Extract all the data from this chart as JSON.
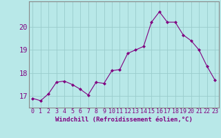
{
  "x": [
    0,
    1,
    2,
    3,
    4,
    5,
    6,
    7,
    8,
    9,
    10,
    11,
    12,
    13,
    14,
    15,
    16,
    17,
    18,
    19,
    20,
    21,
    22,
    23
  ],
  "y": [
    16.9,
    16.8,
    17.1,
    17.6,
    17.65,
    17.5,
    17.3,
    17.05,
    17.6,
    17.55,
    18.1,
    18.15,
    18.85,
    19.0,
    19.15,
    20.2,
    20.65,
    20.2,
    20.2,
    19.65,
    19.4,
    19.0,
    18.3,
    17.7
  ],
  "line_color": "#800080",
  "marker": "D",
  "marker_size": 2.0,
  "bg_color": "#b8e8e8",
  "grid_color": "#99cccc",
  "xlabel": "Windchill (Refroidissement éolien,°C)",
  "xlim": [
    -0.5,
    23.5
  ],
  "ylim": [
    16.5,
    21.1
  ],
  "yticks": [
    17,
    18,
    19,
    20
  ],
  "xticks": [
    0,
    1,
    2,
    3,
    4,
    5,
    6,
    7,
    8,
    9,
    10,
    11,
    12,
    13,
    14,
    15,
    16,
    17,
    18,
    19,
    20,
    21,
    22,
    23
  ],
  "tick_color": "#800080",
  "label_fontsize": 6.5,
  "tick_fontsize": 6.0,
  "ytick_fontsize": 7.5
}
